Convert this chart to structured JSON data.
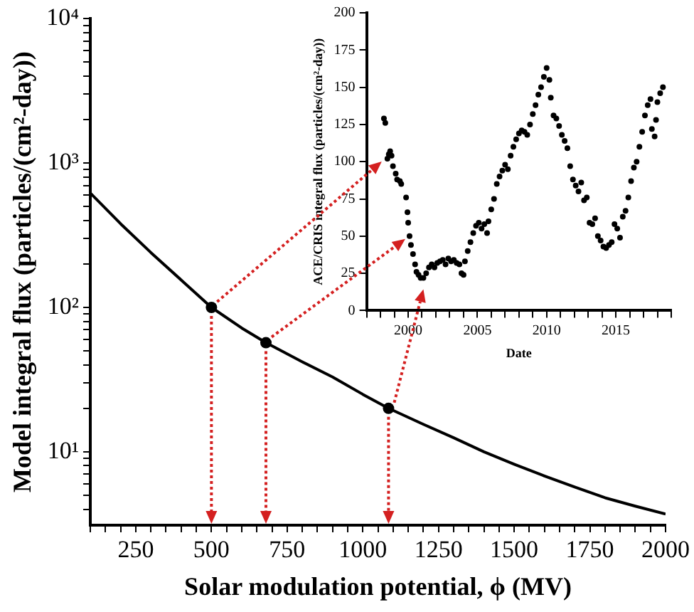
{
  "chart_data": [
    {
      "type": "line",
      "xlabel": "Solar modulation potential, ϕ (MV)",
      "ylabel": "Model integral flux (particles/(cm²-day))",
      "log": "y",
      "grid": false,
      "legend": false,
      "xlim": [
        100,
        2000
      ],
      "ylim": [
        3.1,
        10000
      ],
      "xticks": [
        {
          "value": 100,
          "label": null
        },
        {
          "value": 150,
          "label": null
        },
        {
          "value": 200,
          "label": null
        },
        250,
        {
          "value": 300,
          "label": null
        },
        {
          "value": 350,
          "label": null
        },
        {
          "value": 400,
          "label": null
        },
        {
          "value": 450,
          "label": null
        },
        500,
        {
          "value": 550,
          "label": null
        },
        {
          "value": 600,
          "label": null
        },
        {
          "value": 650,
          "label": null
        },
        {
          "value": 700,
          "label": null
        },
        750,
        {
          "value": 800,
          "label": null
        },
        {
          "value": 850,
          "label": null
        },
        {
          "value": 900,
          "label": null
        },
        {
          "value": 950,
          "label": null
        },
        1000,
        {
          "value": 1050,
          "label": null
        },
        {
          "value": 1100,
          "label": null
        },
        {
          "value": 1150,
          "label": null
        },
        {
          "value": 1200,
          "label": null
        },
        1250,
        {
          "value": 1300,
          "label": null
        },
        {
          "value": 1350,
          "label": null
        },
        {
          "value": 1400,
          "label": null
        },
        {
          "value": 1450,
          "label": null
        },
        1500,
        {
          "value": 1550,
          "label": null
        },
        {
          "value": 1600,
          "label": null
        },
        {
          "value": 1650,
          "label": null
        },
        {
          "value": 1700,
          "label": null
        },
        1750,
        {
          "value": 1800,
          "label": null
        },
        {
          "value": 1850,
          "label": null
        },
        {
          "value": 1900,
          "label": null
        },
        {
          "value": 1950,
          "label": null
        },
        2000
      ],
      "yticks": [
        {
          "value": 4,
          "label": null
        },
        {
          "value": 5,
          "label": null
        },
        {
          "value": 6,
          "label": null
        },
        {
          "value": 7,
          "label": null
        },
        {
          "value": 8,
          "label": null
        },
        {
          "value": 9,
          "label": null
        },
        {
          "value": 10,
          "label": "10¹"
        },
        {
          "value": 20,
          "label": null
        },
        {
          "value": 30,
          "label": null
        },
        {
          "value": 40,
          "label": null
        },
        {
          "value": 50,
          "label": null
        },
        {
          "value": 60,
          "label": null
        },
        {
          "value": 70,
          "label": null
        },
        {
          "value": 80,
          "label": null
        },
        {
          "value": 90,
          "label": null
        },
        {
          "value": 100,
          "label": "10²"
        },
        {
          "value": 200,
          "label": null
        },
        {
          "value": 300,
          "label": null
        },
        {
          "value": 400,
          "label": null
        },
        {
          "value": 500,
          "label": null
        },
        {
          "value": 600,
          "label": null
        },
        {
          "value": 700,
          "label": null
        },
        {
          "value": 800,
          "label": null
        },
        {
          "value": 900,
          "label": null
        },
        {
          "value": 1000,
          "label": "10³"
        },
        {
          "value": 2000,
          "label": null
        },
        {
          "value": 3000,
          "label": null
        },
        {
          "value": 4000,
          "label": null
        },
        {
          "value": 5000,
          "label": null
        },
        {
          "value": 6000,
          "label": null
        },
        {
          "value": 7000,
          "label": null
        },
        {
          "value": 8000,
          "label": null
        },
        {
          "value": 9000,
          "label": null
        },
        {
          "value": 10000,
          "label": "10⁴"
        }
      ],
      "series": [
        {
          "type": "line",
          "color": "#000000",
          "marker": "none",
          "x": [
            100,
            200,
            300,
            400,
            500,
            600,
            680,
            800,
            900,
            1000,
            1085,
            1200,
            1300,
            1400,
            1500,
            1600,
            1700,
            1800,
            1900,
            2000
          ],
          "values": [
            620,
            380,
            240,
            155,
            100,
            72,
            57,
            42,
            33,
            25,
            20,
            15.5,
            12.5,
            10,
            8.2,
            6.8,
            5.7,
            4.8,
            4.2,
            3.7
          ]
        },
        {
          "type": "scatter",
          "color": "#000000",
          "marker": "circle",
          "x": [
            500,
            680,
            1085
          ],
          "values": [
            100,
            57,
            20
          ]
        }
      ]
    },
    {
      "type": "scatter",
      "xlabel": "Date",
      "ylabel": "ACE/CRIS integral flux (particles/(cm²-day))",
      "grid": false,
      "legend": false,
      "marker": "circle",
      "xlim": [
        1997,
        2019
      ],
      "ylim": [
        0,
        200
      ],
      "xticks": [
        {
          "value": 1997,
          "label": null
        },
        {
          "value": 1998,
          "label": null
        },
        {
          "value": 1999,
          "label": null
        },
        2000,
        {
          "value": 2001,
          "label": null
        },
        {
          "value": 2002,
          "label": null
        },
        {
          "value": 2003,
          "label": null
        },
        {
          "value": 2004,
          "label": null
        },
        2005,
        {
          "value": 2006,
          "label": null
        },
        {
          "value": 2007,
          "label": null
        },
        {
          "value": 2008,
          "label": null
        },
        {
          "value": 2009,
          "label": null
        },
        2010,
        {
          "value": 2011,
          "label": null
        },
        {
          "value": 2012,
          "label": null
        },
        {
          "value": 2013,
          "label": null
        },
        {
          "value": 2014,
          "label": null
        },
        2015,
        {
          "value": 2016,
          "label": null
        },
        {
          "value": 2017,
          "label": null
        },
        {
          "value": 2018,
          "label": null
        },
        {
          "value": 2019,
          "label": null
        }
      ],
      "yticks": [
        0,
        25,
        50,
        75,
        100,
        125,
        150,
        175,
        200
      ],
      "series": [
        {
          "color": "#000000",
          "x": [
            1998.25,
            1998.35,
            1998.5,
            1998.6,
            1998.7,
            1998.8,
            1998.9,
            1999.1,
            1999.2,
            1999.4,
            1999.5,
            1999.85,
            1999.95,
            2000.0,
            2000.1,
            2000.2,
            2000.35,
            2000.5,
            2000.6,
            2000.75,
            2000.9,
            2001.1,
            2001.3,
            2001.5,
            2001.7,
            2001.9,
            2002.1,
            2002.3,
            2002.5,
            2002.7,
            2002.9,
            2003.1,
            2003.3,
            2003.5,
            2003.7,
            2003.85,
            2004.0,
            2004.1,
            2004.3,
            2004.5,
            2004.7,
            2004.9,
            2005.1,
            2005.3,
            2005.5,
            2005.7,
            2005.8,
            2006.0,
            2006.2,
            2006.4,
            2006.6,
            2006.8,
            2007.0,
            2007.2,
            2007.4,
            2007.6,
            2007.8,
            2008.0,
            2008.2,
            2008.4,
            2008.6,
            2008.8,
            2009.0,
            2009.2,
            2009.4,
            2009.6,
            2009.8,
            2010.0,
            2010.2,
            2010.3,
            2010.5,
            2010.7,
            2010.9,
            2011.1,
            2011.3,
            2011.5,
            2011.7,
            2011.9,
            2012.1,
            2012.3,
            2012.5,
            2012.7,
            2012.9,
            2013.1,
            2013.3,
            2013.5,
            2013.7,
            2013.9,
            2014.1,
            2014.3,
            2014.5,
            2014.7,
            2014.9,
            2015.1,
            2015.3,
            2015.5,
            2015.7,
            2015.9,
            2016.1,
            2016.3,
            2016.5,
            2016.7,
            2016.9,
            2017.1,
            2017.3,
            2017.5,
            2017.6,
            2017.8,
            2017.9,
            2018.0,
            2018.2,
            2018.4
          ],
          "values": [
            129,
            126,
            102,
            105,
            107,
            104,
            97,
            92,
            88,
            87,
            85,
            76,
            66,
            59,
            50,
            44,
            38,
            31,
            26,
            24,
            22,
            22,
            25,
            29,
            31,
            29,
            32,
            33,
            34,
            31,
            35,
            33,
            34,
            32,
            31,
            25,
            24,
            33,
            40,
            46,
            52,
            57,
            59,
            55,
            58,
            52,
            60,
            68,
            75,
            85,
            90,
            94,
            98,
            95,
            104,
            110,
            115,
            119,
            121,
            120,
            118,
            125,
            132,
            138,
            145,
            150,
            157,
            163,
            155,
            143,
            131,
            129,
            124,
            118,
            114,
            109,
            97,
            88,
            84,
            80,
            86,
            74,
            76,
            59,
            58,
            62,
            50,
            47,
            43,
            42,
            44,
            46,
            58,
            55,
            49,
            63,
            67,
            76,
            87,
            96,
            100,
            110,
            120,
            131,
            138,
            142,
            122,
            117,
            128,
            140,
            146,
            150
          ]
        }
      ]
    }
  ]
}
